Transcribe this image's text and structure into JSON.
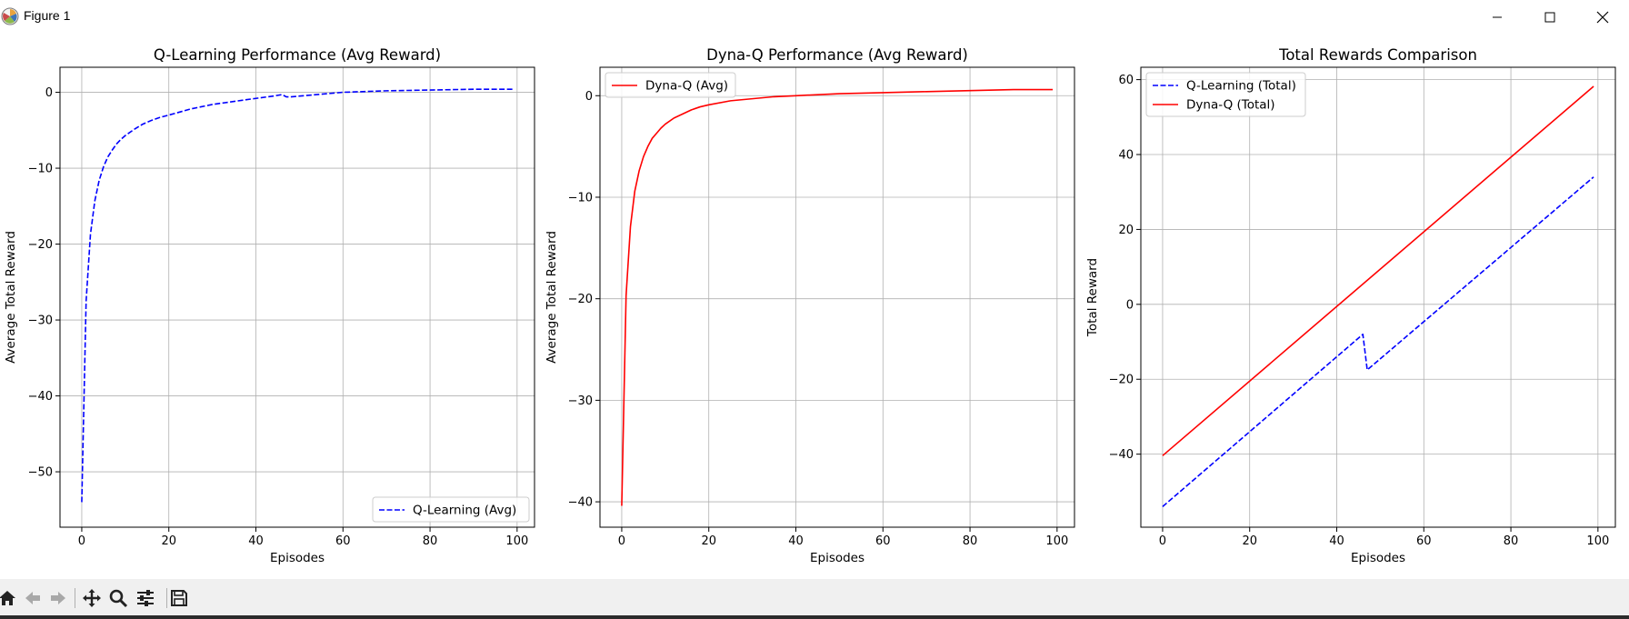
{
  "window": {
    "title": "Figure 1"
  },
  "toolbar": {
    "buttons": [
      {
        "name": "home-icon"
      },
      {
        "name": "back-arrow-icon"
      },
      {
        "name": "forward-arrow-icon"
      },
      {
        "name": "pan-icon"
      },
      {
        "name": "zoom-icon"
      },
      {
        "name": "configure-subplots-icon"
      },
      {
        "name": "save-icon"
      }
    ]
  },
  "colors": {
    "q_learning": "#0000ff",
    "dyna_q": "#ff0000",
    "grid": "#b0b0b0"
  },
  "chart_data": [
    {
      "type": "line",
      "title": "Q-Learning Performance (Avg Reward)",
      "xlabel": "Episodes",
      "ylabel": "Average Total Reward",
      "xlim": [
        -5,
        104
      ],
      "ylim": [
        -57.3,
        3.3
      ],
      "xticks": [
        0,
        20,
        40,
        60,
        80,
        100
      ],
      "yticks": [
        0,
        -10,
        -20,
        -30,
        -40,
        -50
      ],
      "grid": true,
      "legend": "lower-right",
      "series": [
        {
          "name": "Q-Learning (Avg)",
          "style": "dashed",
          "color": "#0000ff",
          "x": [
            0,
            1,
            2,
            3,
            4,
            5,
            6,
            7,
            8,
            9,
            10,
            12,
            14,
            16,
            18,
            20,
            25,
            30,
            35,
            40,
            44,
            45,
            46,
            47,
            48,
            50,
            60,
            70,
            80,
            90,
            99
          ],
          "y": [
            -54,
            -27.5,
            -18.7,
            -14.3,
            -11.6,
            -9.8,
            -8.5,
            -7.6,
            -6.8,
            -6.2,
            -5.7,
            -4.9,
            -4.2,
            -3.7,
            -3.3,
            -3.0,
            -2.2,
            -1.6,
            -1.2,
            -0.8,
            -0.5,
            -0.4,
            -0.3,
            -0.6,
            -0.6,
            -0.5,
            0.0,
            0.2,
            0.3,
            0.4,
            0.4
          ]
        }
      ]
    },
    {
      "type": "line",
      "title": "Dyna-Q Performance (Avg Reward)",
      "xlabel": "Episodes",
      "ylabel": "Average Total Reward",
      "xlim": [
        -5,
        104
      ],
      "ylim": [
        -42.5,
        2.8
      ],
      "xticks": [
        0,
        20,
        40,
        60,
        80,
        100
      ],
      "yticks": [
        0,
        -10,
        -20,
        -30,
        -40
      ],
      "grid": true,
      "legend": "top-left",
      "series": [
        {
          "name": "Dyna-Q (Avg)",
          "style": "solid",
          "color": "#ff0000",
          "x": [
            0,
            1,
            2,
            3,
            4,
            5,
            6,
            7,
            8,
            9,
            10,
            12,
            14,
            16,
            18,
            20,
            25,
            30,
            35,
            40,
            50,
            60,
            70,
            80,
            90,
            99
          ],
          "y": [
            -40.4,
            -19.7,
            -12.9,
            -9.4,
            -7.4,
            -6.0,
            -5.0,
            -4.2,
            -3.7,
            -3.2,
            -2.8,
            -2.2,
            -1.8,
            -1.4,
            -1.1,
            -0.9,
            -0.5,
            -0.3,
            -0.1,
            0.0,
            0.2,
            0.3,
            0.4,
            0.5,
            0.6,
            0.6
          ]
        }
      ]
    },
    {
      "type": "line",
      "title": "Total Rewards Comparison",
      "xlabel": "Episodes",
      "ylabel": "Total Reward",
      "xlim": [
        -5,
        104
      ],
      "ylim": [
        -59.5,
        63.3
      ],
      "xticks": [
        0,
        20,
        40,
        60,
        80,
        100
      ],
      "yticks": [
        60,
        40,
        20,
        0,
        -20,
        -40
      ],
      "grid": true,
      "legend": "top-left",
      "series": [
        {
          "name": "Q-Learning (Total)",
          "style": "dashed",
          "color": "#0000ff",
          "x": [
            0,
            46,
            47,
            99
          ],
          "y": [
            -54,
            -8,
            -17.5,
            34
          ]
        },
        {
          "name": "Dyna-Q (Total)",
          "style": "solid",
          "color": "#ff0000",
          "x": [
            0,
            99
          ],
          "y": [
            -40.4,
            58.2
          ]
        }
      ]
    }
  ]
}
